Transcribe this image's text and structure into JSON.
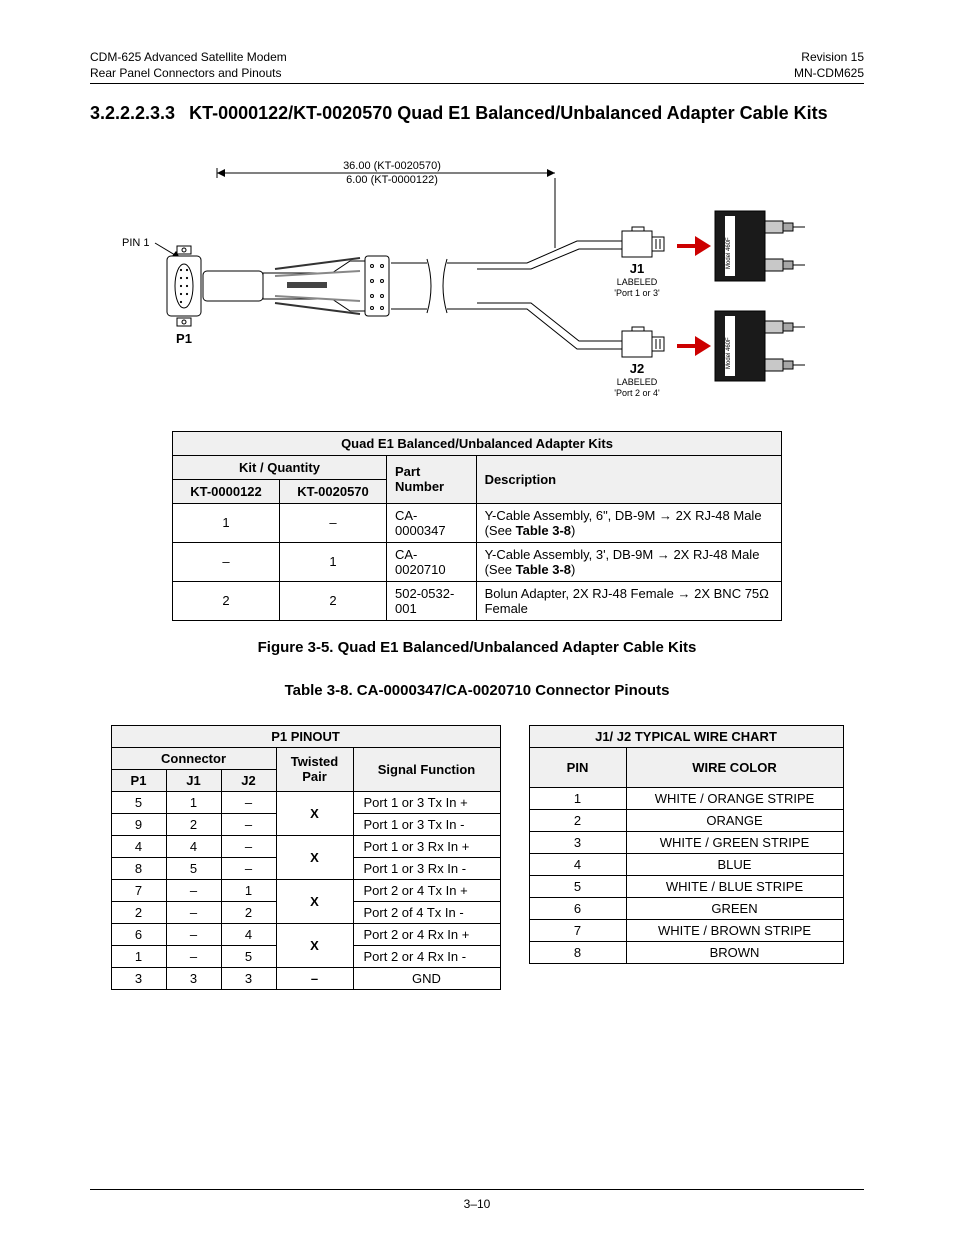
{
  "header": {
    "left1": "CDM-625 Advanced Satellite Modem",
    "left2": "Rear Panel Connectors and Pinouts",
    "right1": "Revision 15",
    "right2": "MN-CDM625"
  },
  "section": {
    "number": "3.2.2.2.3.3",
    "title": "KT-0000122/KT-0020570 Quad E1 Balanced/Unbalanced Adapter Cable Kits"
  },
  "diagram": {
    "dim1": "36.00 (KT-0020570)",
    "dim2": "6.00 (KT-0000122)",
    "pin1": "PIN 1",
    "p1": "P1",
    "j1": "J1",
    "j1_label1": "LABELED",
    "j1_label2": "'Port 1 or 3'",
    "j2": "J2",
    "j2_label1": "LABELED",
    "j2_label2": "'Port 2 or 4'",
    "colors": {
      "stroke": "#000000",
      "gray": "#808080",
      "dark": "#1a1a1a",
      "red": "#cc0000"
    }
  },
  "kits_table": {
    "caption": "Quad E1 Balanced/Unbalanced Adapter Kits",
    "head_kitqty": "Kit / Quantity",
    "head_kt1": "KT-0000122",
    "head_kt2": "KT-0020570",
    "head_part": "Part Number",
    "head_desc": "Description",
    "rows": [
      {
        "q1": "1",
        "q2": "–",
        "part": "CA-0000347",
        "desc": "Y-Cable Assembly, 6\", DB-9M → 2X RJ-48 Male (See ",
        "desc_bold": "Table 3-8",
        "desc_tail": ")"
      },
      {
        "q1": "–",
        "q2": "1",
        "part": "CA-0020710",
        "desc": "Y-Cable Assembly, 3', DB-9M → 2X RJ-48 Male (See ",
        "desc_bold": "Table 3-8",
        "desc_tail": ")"
      },
      {
        "q1": "2",
        "q2": "2",
        "part": "502-0532-001",
        "desc": "Bolun Adapter, 2X RJ-48 Female → 2X BNC 75Ω Female",
        "desc_bold": "",
        "desc_tail": ""
      }
    ]
  },
  "figure_caption": "Figure 3-5. Quad E1 Balanced/Unbalanced Adapter Cable Kits",
  "table_caption": "Table 3-8.  CA-0000347/CA-0020710 Connector Pinouts",
  "pinout": {
    "title": "P1 PINOUT",
    "head_connector": "Connector",
    "head_p1": "P1",
    "head_j1": "J1",
    "head_j2": "J2",
    "head_tp": "Twisted Pair",
    "head_sig": "Signal Function",
    "rows": [
      {
        "p1": "5",
        "j1": "1",
        "j2": "–",
        "tp": "X",
        "tp_span": 2,
        "sig": "Port 1 or 3 Tx In +"
      },
      {
        "p1": "9",
        "j1": "2",
        "j2": "–",
        "sig": "Port 1 or 3 Tx In -"
      },
      {
        "p1": "4",
        "j1": "4",
        "j2": "–",
        "tp": "X",
        "tp_span": 2,
        "sig": "Port 1 or 3 Rx In +"
      },
      {
        "p1": "8",
        "j1": "5",
        "j2": "–",
        "sig": "Port 1 or 3 Rx In -"
      },
      {
        "p1": "7",
        "j1": "–",
        "j2": "1",
        "tp": "X",
        "tp_span": 2,
        "sig": "Port 2 or 4 Tx In +"
      },
      {
        "p1": "2",
        "j1": "–",
        "j2": "2",
        "sig": "Port 2 of 4 Tx In -"
      },
      {
        "p1": "6",
        "j1": "–",
        "j2": "4",
        "tp": "X",
        "tp_span": 2,
        "sig": "Port 2 or 4 Rx In +"
      },
      {
        "p1": "1",
        "j1": "–",
        "j2": "5",
        "sig": "Port 2 or 4 Rx In -"
      },
      {
        "p1": "3",
        "j1": "3",
        "j2": "3",
        "tp": "–",
        "tp_span": 1,
        "sig": "GND",
        "sig_center": true
      }
    ]
  },
  "wire": {
    "title": "J1/ J2 TYPICAL WIRE CHART",
    "head_pin": "PIN",
    "head_color": "WIRE COLOR",
    "rows": [
      {
        "pin": "1",
        "color": "WHITE / ORANGE STRIPE"
      },
      {
        "pin": "2",
        "color": "ORANGE"
      },
      {
        "pin": "3",
        "color": "WHITE / GREEN STRIPE"
      },
      {
        "pin": "4",
        "color": "BLUE"
      },
      {
        "pin": "5",
        "color": "WHITE / BLUE STRIPE"
      },
      {
        "pin": "6",
        "color": "GREEN"
      },
      {
        "pin": "7",
        "color": "WHITE / BROWN STRIPE"
      },
      {
        "pin": "8",
        "color": "BROWN"
      }
    ]
  },
  "footer": {
    "page": "3–10"
  }
}
